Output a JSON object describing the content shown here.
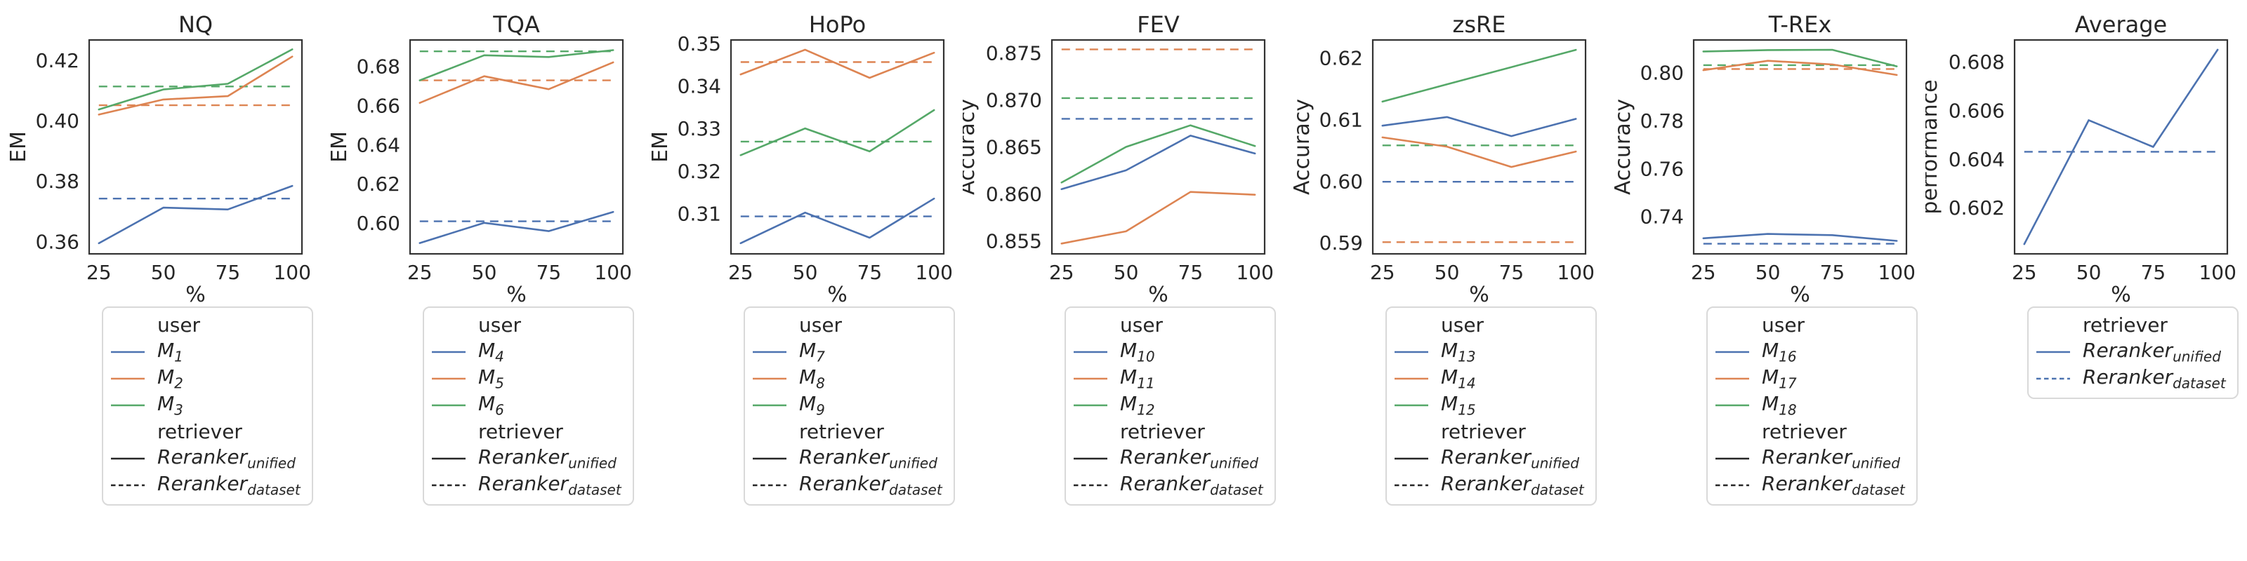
{
  "figure": {
    "background": "#ffffff",
    "text_color": "#262626",
    "spine_color": "#333333",
    "legend_border_color": "#d9d9d9",
    "palette": {
      "blue": "#4C72B0",
      "orange": "#DD8452",
      "green": "#55A868",
      "black": "#262626"
    },
    "legend_headers": {
      "user": "user",
      "retriever": "retriever"
    }
  },
  "chart_data": [
    {
      "type": "line",
      "title": "NQ",
      "xlabel": "%",
      "ylabel": "EM",
      "x": [
        25,
        50,
        75,
        100
      ],
      "xtick_labels": [
        "25",
        "50",
        "75",
        "100"
      ],
      "xlim": [
        21.25,
        103.75
      ],
      "ytick_values": [
        0.36,
        0.38,
        0.4,
        0.42
      ],
      "ytick_labels": [
        "0.36",
        "0.38",
        "0.40",
        "0.42"
      ],
      "ylim": [
        0.3559,
        0.4267
      ],
      "series": [
        {
          "name": "M",
          "sub": "1",
          "color": "blue",
          "style": "solid",
          "values": [
            0.3594,
            0.3712,
            0.3706,
            0.3784
          ]
        },
        {
          "name": "M",
          "sub": "2",
          "color": "orange",
          "style": "solid",
          "values": [
            0.402,
            0.407,
            0.4081,
            0.4212
          ]
        },
        {
          "name": "M",
          "sub": "3",
          "color": "green",
          "style": "solid",
          "values": [
            0.4037,
            0.4103,
            0.4122,
            0.4236
          ]
        }
      ],
      "baselines": [
        {
          "series": "M1",
          "color": "blue",
          "value": 0.3742
        },
        {
          "series": "M2",
          "color": "orange",
          "value": 0.4051
        },
        {
          "series": "M3",
          "color": "green",
          "value": 0.4113
        }
      ],
      "legend_groups": [
        {
          "header": "user",
          "items": [
            {
              "main": "M",
              "sub": "1",
              "color": "blue",
              "style": "solid"
            },
            {
              "main": "M",
              "sub": "2",
              "color": "orange",
              "style": "solid"
            },
            {
              "main": "M",
              "sub": "3",
              "color": "green",
              "style": "solid"
            }
          ]
        },
        {
          "header": "retriever",
          "items": [
            {
              "main": "Reranker",
              "sub": "unified",
              "color": "black",
              "style": "solid"
            },
            {
              "main": "Reranker",
              "sub": "dataset",
              "color": "black",
              "style": "dashed"
            }
          ]
        }
      ]
    },
    {
      "type": "line",
      "title": "TQA",
      "xlabel": "%",
      "ylabel": "EM",
      "x": [
        25,
        50,
        75,
        100
      ],
      "xtick_labels": [
        "25",
        "50",
        "75",
        "100"
      ],
      "xlim": [
        21.25,
        103.75
      ],
      "ytick_values": [
        0.6,
        0.62,
        0.64,
        0.66,
        0.68
      ],
      "ytick_labels": [
        "0.60",
        "0.62",
        "0.64",
        "0.66",
        "0.68"
      ],
      "ylim": [
        0.5843,
        0.6934
      ],
      "series": [
        {
          "name": "M",
          "sub": "4",
          "color": "blue",
          "style": "solid",
          "values": [
            0.5898,
            0.6001,
            0.5959,
            0.6057
          ]
        },
        {
          "name": "M",
          "sub": "5",
          "color": "orange",
          "style": "solid",
          "values": [
            0.6613,
            0.6749,
            0.6683,
            0.682
          ]
        },
        {
          "name": "M",
          "sub": "6",
          "color": "green",
          "style": "solid",
          "values": [
            0.6728,
            0.6856,
            0.6847,
            0.6882
          ]
        }
      ],
      "baselines": [
        {
          "series": "M4",
          "color": "blue",
          "value": 0.6009
        },
        {
          "series": "M5",
          "color": "orange",
          "value": 0.6728
        },
        {
          "series": "M6",
          "color": "green",
          "value": 0.6876
        }
      ],
      "legend_groups": [
        {
          "header": "user",
          "items": [
            {
              "main": "M",
              "sub": "4",
              "color": "blue",
              "style": "solid"
            },
            {
              "main": "M",
              "sub": "5",
              "color": "orange",
              "style": "solid"
            },
            {
              "main": "M",
              "sub": "6",
              "color": "green",
              "style": "solid"
            }
          ]
        },
        {
          "header": "retriever",
          "items": [
            {
              "main": "Reranker",
              "sub": "unified",
              "color": "black",
              "style": "solid"
            },
            {
              "main": "Reranker",
              "sub": "dataset",
              "color": "black",
              "style": "dashed"
            }
          ]
        }
      ]
    },
    {
      "type": "line",
      "title": "HoPo",
      "xlabel": "%",
      "ylabel": "EM",
      "x": [
        25,
        50,
        75,
        100
      ],
      "xtick_labels": [
        "25",
        "50",
        "75",
        "100"
      ],
      "xlim": [
        21.25,
        103.75
      ],
      "ytick_values": [
        0.31,
        0.32,
        0.33,
        0.34,
        0.35
      ],
      "ytick_labels": [
        "0.31",
        "0.32",
        "0.33",
        "0.34",
        "0.35"
      ],
      "ylim": [
        0.3005,
        0.3508
      ],
      "series": [
        {
          "name": "M",
          "sub": "7",
          "color": "blue",
          "style": "solid",
          "values": [
            0.303,
            0.3102,
            0.3043,
            0.3135
          ]
        },
        {
          "name": "M",
          "sub": "8",
          "color": "orange",
          "style": "solid",
          "values": [
            0.3427,
            0.3485,
            0.3419,
            0.3478
          ]
        },
        {
          "name": "M",
          "sub": "9",
          "color": "green",
          "style": "solid",
          "values": [
            0.3237,
            0.33,
            0.3246,
            0.3343
          ]
        }
      ],
      "baselines": [
        {
          "series": "M7",
          "color": "blue",
          "value": 0.3093
        },
        {
          "series": "M8",
          "color": "orange",
          "value": 0.3456
        },
        {
          "series": "M9",
          "color": "green",
          "value": 0.3269
        }
      ],
      "legend_groups": [
        {
          "header": "user",
          "items": [
            {
              "main": "M",
              "sub": "7",
              "color": "blue",
              "style": "solid"
            },
            {
              "main": "M",
              "sub": "8",
              "color": "orange",
              "style": "solid"
            },
            {
              "main": "M",
              "sub": "9",
              "color": "green",
              "style": "solid"
            }
          ]
        },
        {
          "header": "retriever",
          "items": [
            {
              "main": "Reranker",
              "sub": "unified",
              "color": "black",
              "style": "solid"
            },
            {
              "main": "Reranker",
              "sub": "dataset",
              "color": "black",
              "style": "dashed"
            }
          ]
        }
      ]
    },
    {
      "type": "line",
      "title": "FEV",
      "xlabel": "%",
      "ylabel": "Accuracy",
      "x": [
        25,
        50,
        75,
        100
      ],
      "xtick_labels": [
        "25",
        "50",
        "75",
        "100"
      ],
      "xlim": [
        21.25,
        103.75
      ],
      "ytick_values": [
        0.855,
        0.86,
        0.865,
        0.87,
        0.875
      ],
      "ytick_labels": [
        "0.855",
        "0.860",
        "0.865",
        "0.870",
        "0.875"
      ],
      "ylim": [
        0.8536,
        0.8764
      ],
      "series": [
        {
          "name": "M",
          "sub": "10",
          "color": "blue",
          "style": "solid",
          "values": [
            0.8605,
            0.8625,
            0.8662,
            0.8643
          ]
        },
        {
          "name": "M",
          "sub": "11",
          "color": "orange",
          "style": "solid",
          "values": [
            0.8547,
            0.856,
            0.8602,
            0.8599
          ]
        },
        {
          "name": "M",
          "sub": "12",
          "color": "green",
          "style": "solid",
          "values": [
            0.8612,
            0.865,
            0.8673,
            0.8651
          ]
        }
      ],
      "baselines": [
        {
          "series": "M10",
          "color": "blue",
          "value": 0.868
        },
        {
          "series": "M11",
          "color": "orange",
          "value": 0.8754
        },
        {
          "series": "M12",
          "color": "green",
          "value": 0.8702
        }
      ],
      "legend_groups": [
        {
          "header": "user",
          "items": [
            {
              "main": "M",
              "sub": "10",
              "color": "blue",
              "style": "solid"
            },
            {
              "main": "M",
              "sub": "11",
              "color": "orange",
              "style": "solid"
            },
            {
              "main": "M",
              "sub": "12",
              "color": "green",
              "style": "solid"
            }
          ]
        },
        {
          "header": "retriever",
          "items": [
            {
              "main": "Reranker",
              "sub": "unified",
              "color": "black",
              "style": "solid"
            },
            {
              "main": "Reranker",
              "sub": "dataset",
              "color": "black",
              "style": "dashed"
            }
          ]
        }
      ]
    },
    {
      "type": "line",
      "title": "zsRE",
      "xlabel": "%",
      "ylabel": "Accuracy",
      "x": [
        25,
        50,
        75,
        100
      ],
      "xtick_labels": [
        "25",
        "50",
        "75",
        "100"
      ],
      "xlim": [
        21.25,
        103.75
      ],
      "ytick_values": [
        0.59,
        0.6,
        0.61,
        0.62
      ],
      "ytick_labels": [
        "0.59",
        "0.60",
        "0.61",
        "0.62"
      ],
      "ylim": [
        0.5882,
        0.6229
      ],
      "series": [
        {
          "name": "M",
          "sub": "13",
          "color": "blue",
          "style": "solid",
          "values": [
            0.609,
            0.6104,
            0.6073,
            0.6101
          ]
        },
        {
          "name": "M",
          "sub": "14",
          "color": "orange",
          "style": "solid",
          "values": [
            0.6071,
            0.6056,
            0.6023,
            0.6048
          ]
        },
        {
          "name": "M",
          "sub": "15",
          "color": "green",
          "style": "solid",
          "values": [
            0.6129,
            0.6157,
            0.6185,
            0.6213
          ]
        }
      ],
      "baselines": [
        {
          "series": "M13",
          "color": "blue",
          "value": 0.5999
        },
        {
          "series": "M14",
          "color": "orange",
          "value": 0.5901
        },
        {
          "series": "M15",
          "color": "green",
          "value": 0.6058
        }
      ],
      "legend_groups": [
        {
          "header": "user",
          "items": [
            {
              "main": "M",
              "sub": "13",
              "color": "blue",
              "style": "solid"
            },
            {
              "main": "M",
              "sub": "14",
              "color": "orange",
              "style": "solid"
            },
            {
              "main": "M",
              "sub": "15",
              "color": "green",
              "style": "solid"
            }
          ]
        },
        {
          "header": "retriever",
          "items": [
            {
              "main": "Reranker",
              "sub": "unified",
              "color": "black",
              "style": "solid"
            },
            {
              "main": "Reranker",
              "sub": "dataset",
              "color": "black",
              "style": "dashed"
            }
          ]
        }
      ]
    },
    {
      "type": "line",
      "title": "T-REx",
      "xlabel": "%",
      "ylabel": "Accuracy",
      "x": [
        25,
        50,
        75,
        100
      ],
      "xtick_labels": [
        "25",
        "50",
        "75",
        "100"
      ],
      "xlim": [
        21.25,
        103.75
      ],
      "ytick_values": [
        0.74,
        0.76,
        0.78,
        0.8
      ],
      "ytick_labels": [
        "0.74",
        "0.76",
        "0.78",
        "0.80"
      ],
      "ylim": [
        0.7244,
        0.8136
      ],
      "series": [
        {
          "name": "M",
          "sub": "16",
          "color": "blue",
          "style": "solid",
          "values": [
            0.7309,
            0.7327,
            0.7322,
            0.7298
          ]
        },
        {
          "name": "M",
          "sub": "17",
          "color": "orange",
          "style": "solid",
          "values": [
            0.801,
            0.8049,
            0.8034,
            0.799
          ]
        },
        {
          "name": "M",
          "sub": "18",
          "color": "green",
          "style": "solid",
          "values": [
            0.8088,
            0.8094,
            0.8095,
            0.8026
          ]
        }
      ],
      "baselines": [
        {
          "series": "M16",
          "color": "blue",
          "value": 0.7286
        },
        {
          "series": "M17",
          "color": "orange",
          "value": 0.8015
        },
        {
          "series": "M18",
          "color": "green",
          "value": 0.8031
        }
      ],
      "legend_groups": [
        {
          "header": "user",
          "items": [
            {
              "main": "M",
              "sub": "16",
              "color": "blue",
              "style": "solid"
            },
            {
              "main": "M",
              "sub": "17",
              "color": "orange",
              "style": "solid"
            },
            {
              "main": "M",
              "sub": "18",
              "color": "green",
              "style": "solid"
            }
          ]
        },
        {
          "header": "retriever",
          "items": [
            {
              "main": "Reranker",
              "sub": "unified",
              "color": "black",
              "style": "solid"
            },
            {
              "main": "Reranker",
              "sub": "dataset",
              "color": "black",
              "style": "dashed"
            }
          ]
        }
      ]
    },
    {
      "type": "line",
      "title": "Average",
      "xlabel": "%",
      "ylabel": "performance",
      "x": [
        25,
        50,
        75,
        100
      ],
      "xtick_labels": [
        "25",
        "50",
        "75",
        "100"
      ],
      "xlim": [
        21.25,
        103.75
      ],
      "ytick_values": [
        0.602,
        0.604,
        0.606,
        0.608
      ],
      "ytick_labels": [
        "0.602",
        "0.604",
        "0.606",
        "0.608"
      ],
      "ylim": [
        0.6001,
        0.6089
      ],
      "series": [
        {
          "name": "Reranker",
          "sub": "unified",
          "color": "blue",
          "style": "solid",
          "values": [
            0.6005,
            0.6056,
            0.6045,
            0.6085
          ]
        }
      ],
      "baselines": [
        {
          "series": "Reranker_dataset",
          "color": "blue",
          "value": 0.6043
        }
      ],
      "legend_groups": [
        {
          "header": "retriever",
          "items": [
            {
              "main": "Reranker",
              "sub": "unified",
              "color": "blue",
              "style": "solid"
            },
            {
              "main": "Reranker",
              "sub": "dataset",
              "color": "blue",
              "style": "dashed"
            }
          ]
        }
      ]
    }
  ]
}
